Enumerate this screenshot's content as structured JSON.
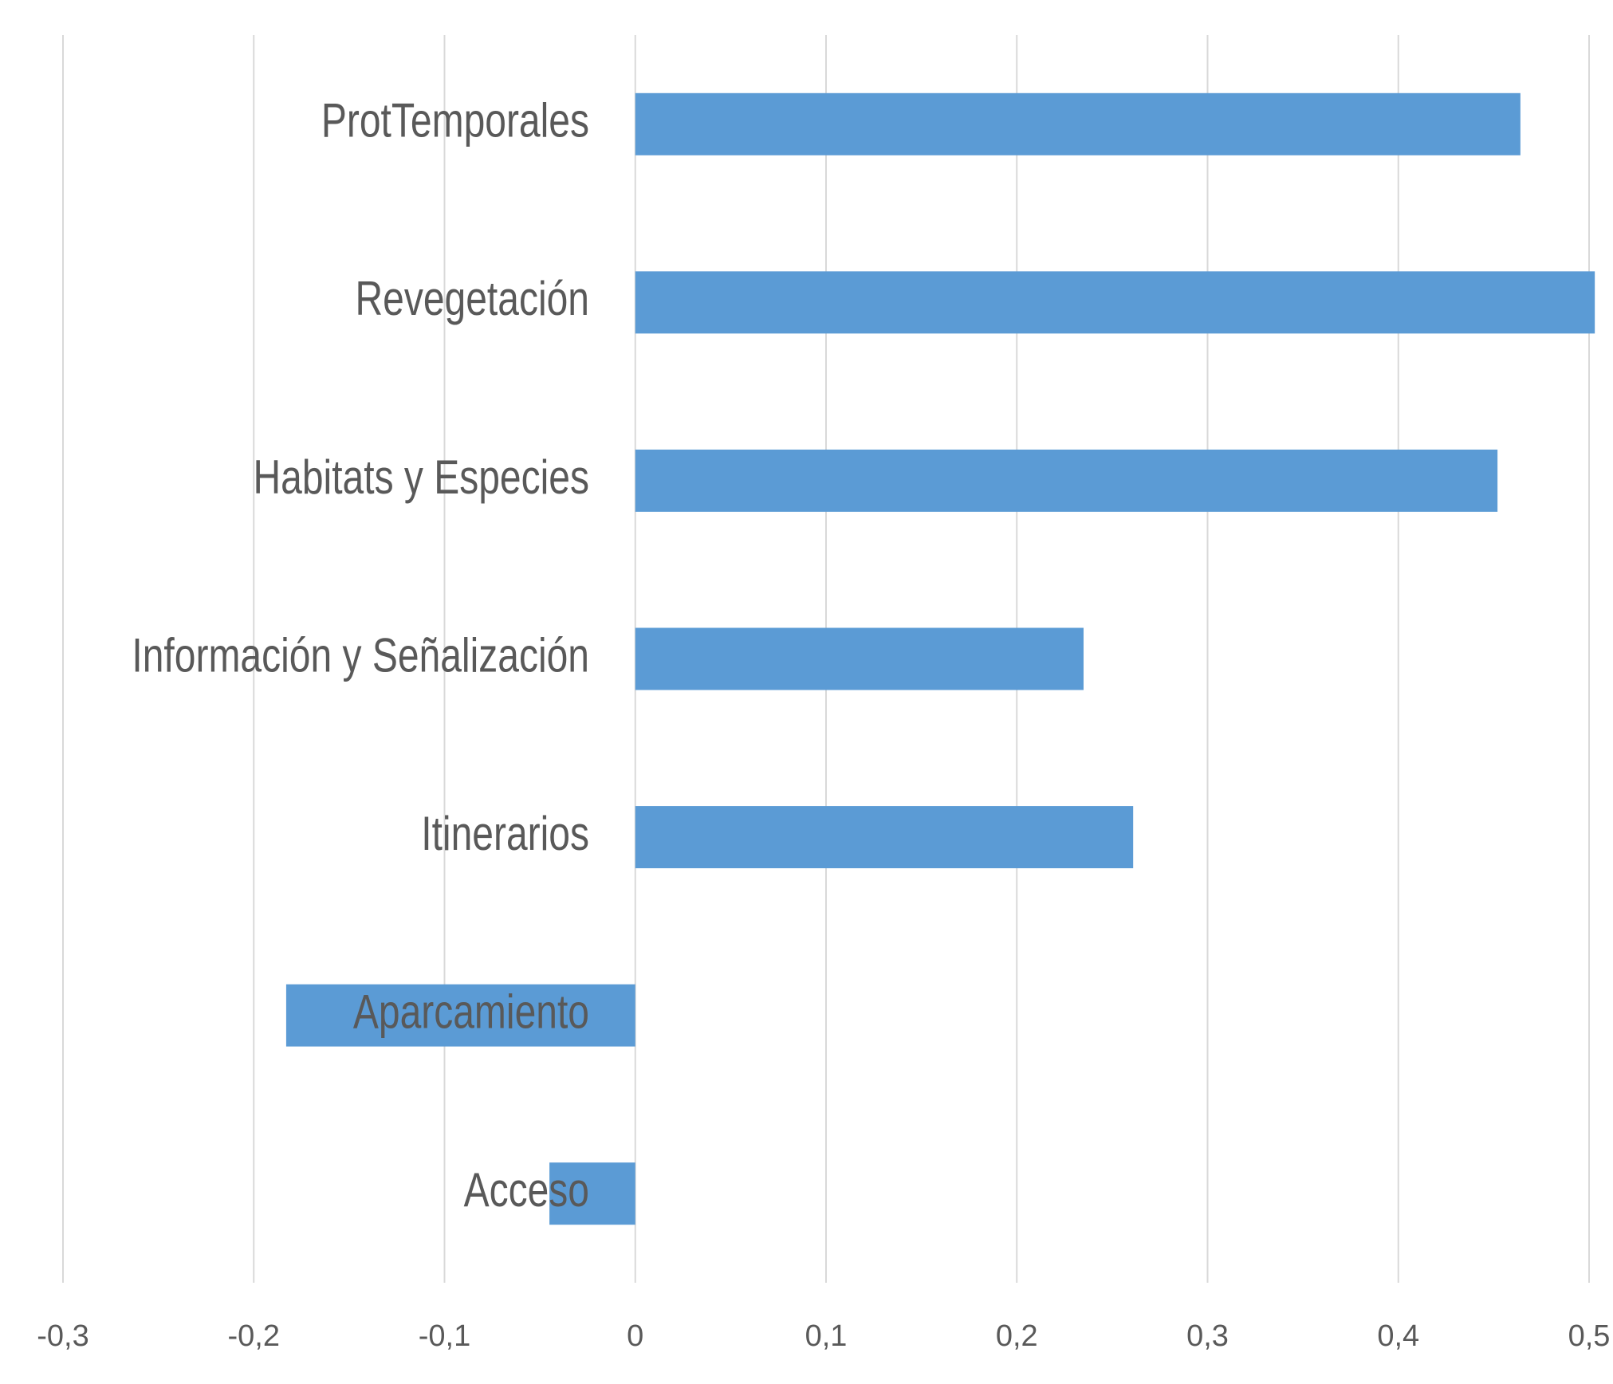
{
  "chart_data": {
    "type": "bar",
    "orientation": "horizontal",
    "categories": [
      "ProtTemporales",
      "Revegetación",
      "Habitats y Especies",
      "Información y Señalización",
      "Itinerarios",
      "Aparcamiento",
      "Acceso"
    ],
    "values": [
      0.464,
      0.503,
      0.452,
      0.235,
      0.261,
      -0.183,
      -0.045
    ],
    "color": "#5b9bd5",
    "xlim": [
      -0.3,
      0.5
    ],
    "xticks": [
      {
        "value": -0.3,
        "label": "-0,3"
      },
      {
        "value": -0.2,
        "label": "-0,2"
      },
      {
        "value": -0.1,
        "label": "-0,1"
      },
      0,
      {
        "value": 0.1,
        "label": "0,1"
      },
      {
        "value": 0.2,
        "label": "0,2"
      },
      {
        "value": 0.3,
        "label": "0,3"
      },
      {
        "value": 0.4,
        "label": "0,4"
      },
      {
        "value": 0.5,
        "label": "0,5"
      }
    ],
    "grid": true
  }
}
